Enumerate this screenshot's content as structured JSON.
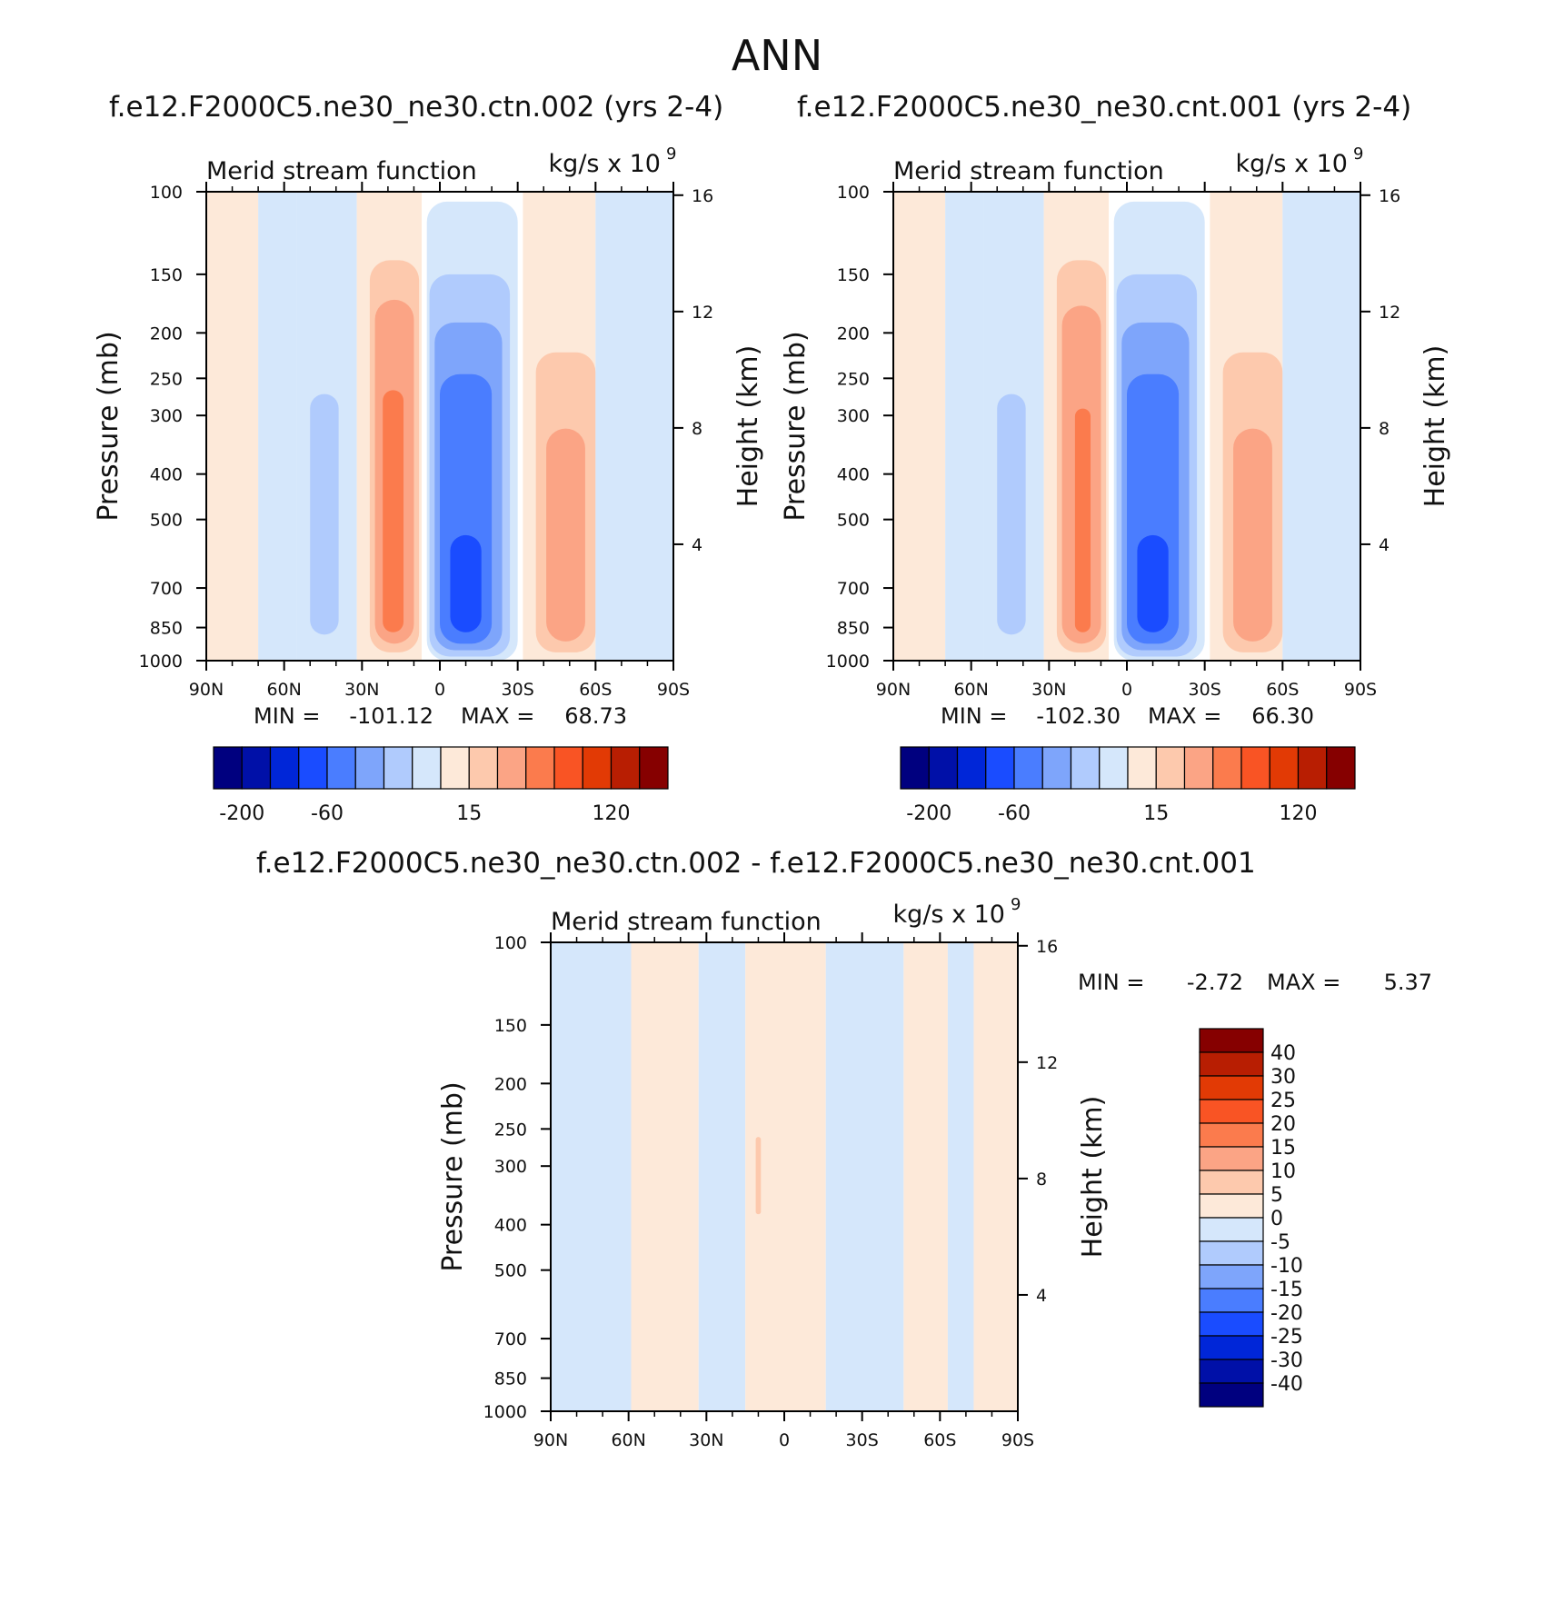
{
  "figure": {
    "title": "ANN",
    "panel_titles": [
      "f.e12.F2000C5.ne30_ne30.ctn.002 (yrs 2-4)",
      "f.e12.F2000C5.ne30_ne30.cnt.001 (yrs 2-4)",
      "f.e12.F2000C5.ne30_ne30.ctn.002 - f.e12.F2000C5.ne30_ne30.cnt.001"
    ]
  },
  "colors": {
    "main_scale": [
      "#00007f",
      "#0010a8",
      "#0026d8",
      "#1a4cff",
      "#4a7dff",
      "#7ea5fb",
      "#b0cbfd",
      "#d5e7fb",
      "#fde9d9",
      "#fdc9ad",
      "#fba485",
      "#fb7b4d",
      "#f95424",
      "#e23a05",
      "#b81e02",
      "#860000"
    ],
    "diff_scale": [
      "#00007f",
      "#0010a8",
      "#0026d8",
      "#1a4cff",
      "#4a7dff",
      "#7ea5fb",
      "#b0cbfd",
      "#d5e7fb",
      "#fde9d9",
      "#fdc9ad",
      "#fba485",
      "#fb7b4d",
      "#f95424",
      "#e23a05",
      "#b81e02",
      "#860000"
    ]
  },
  "chart_data": [
    {
      "type": "heatmap",
      "title": "f.e12.F2000C5.ne30_ne30.ctn.002 (yrs 2-4)",
      "left_string": "Merid stream function",
      "right_string": "kg/s x 10",
      "right_string_exp": "9",
      "xlabel": "",
      "ylabel": "Pressure (mb)",
      "y2label": "Height (km)",
      "x_tick_labels": [
        "90N",
        "60N",
        "30N",
        "0",
        "30S",
        "60S",
        "90S"
      ],
      "x_ticks": [
        90,
        60,
        30,
        0,
        -30,
        -60,
        -90
      ],
      "xlim": [
        90,
        -90
      ],
      "y_ticks": [
        100,
        150,
        200,
        250,
        300,
        400,
        500,
        700,
        850,
        1000
      ],
      "y_tick_labels": [
        "100",
        "150",
        "200",
        "250",
        "300",
        "400",
        "500",
        "700",
        "850",
        "1000"
      ],
      "ylim": [
        1000,
        100
      ],
      "y_scale": "log",
      "y2_ticks": [
        4,
        8,
        12,
        16
      ],
      "y2_tick_labels": [
        "4",
        "8",
        "12",
        "16"
      ],
      "min_label": "MIN =",
      "min_value": "-101.12",
      "max_label": "MAX =",
      "max_value": "68.73",
      "contour_levels": [
        -200,
        -150,
        -100,
        -60,
        -40,
        -30,
        -15,
        0,
        15,
        30,
        40,
        60,
        100,
        120,
        150
      ],
      "colorbar_labels": [
        "-200",
        "-60",
        "15",
        "120"
      ],
      "colorbar_orientation": "horizontal",
      "cells": [
        {
          "lat_from": 90,
          "lat_to": 70,
          "p_from": 100,
          "p_to": 1000,
          "value": 7
        },
        {
          "lat_from": 70,
          "lat_to": 55,
          "p_from": 100,
          "p_to": 1000,
          "value": -7
        },
        {
          "lat_from": 55,
          "lat_to": 32,
          "p_from": 100,
          "p_to": 1000,
          "value": -7
        },
        {
          "lat_from": 50,
          "lat_to": 39,
          "p_from": 270,
          "p_to": 880,
          "value": -18
        },
        {
          "lat_from": 32,
          "lat_to": 7,
          "p_from": 100,
          "p_to": 1000,
          "value": 7
        },
        {
          "lat_from": 27,
          "lat_to": 8,
          "p_from": 140,
          "p_to": 960,
          "value": 18
        },
        {
          "lat_from": 25,
          "lat_to": 10,
          "p_from": 170,
          "p_to": 920,
          "value": 35
        },
        {
          "lat_from": 22,
          "lat_to": 14,
          "p_from": 265,
          "p_to": 870,
          "value": 45
        },
        {
          "lat_from": 5,
          "lat_to": -30,
          "p_from": 105,
          "p_to": 1000,
          "value": -7
        },
        {
          "lat_from": 4,
          "lat_to": -27,
          "p_from": 150,
          "p_to": 980,
          "value": -18
        },
        {
          "lat_from": 2,
          "lat_to": -24,
          "p_from": 190,
          "p_to": 950,
          "value": -35
        },
        {
          "lat_from": 0,
          "lat_to": -20,
          "p_from": 245,
          "p_to": 920,
          "value": -50
        },
        {
          "lat_from": -4,
          "lat_to": -16,
          "p_from": 540,
          "p_to": 870,
          "value": -80
        },
        {
          "lat_from": -32,
          "lat_to": -60,
          "p_from": 100,
          "p_to": 1000,
          "value": 7
        },
        {
          "lat_from": -37,
          "lat_to": -60,
          "p_from": 220,
          "p_to": 960,
          "value": 18
        },
        {
          "lat_from": -41,
          "lat_to": -56,
          "p_from": 320,
          "p_to": 910,
          "value": 35
        },
        {
          "lat_from": -60,
          "lat_to": -90,
          "p_from": 100,
          "p_to": 1000,
          "value": -7
        }
      ]
    },
    {
      "type": "heatmap",
      "title": "f.e12.F2000C5.ne30_ne30.cnt.001 (yrs 2-4)",
      "left_string": "Merid stream function",
      "right_string": "kg/s x 10",
      "right_string_exp": "9",
      "xlabel": "",
      "ylabel": "Pressure (mb)",
      "y2label": "Height (km)",
      "x_tick_labels": [
        "90N",
        "60N",
        "30N",
        "0",
        "30S",
        "60S",
        "90S"
      ],
      "x_ticks": [
        90,
        60,
        30,
        0,
        -30,
        -60,
        -90
      ],
      "xlim": [
        90,
        -90
      ],
      "y_ticks": [
        100,
        150,
        200,
        250,
        300,
        400,
        500,
        700,
        850,
        1000
      ],
      "y_tick_labels": [
        "100",
        "150",
        "200",
        "250",
        "300",
        "400",
        "500",
        "700",
        "850",
        "1000"
      ],
      "ylim": [
        1000,
        100
      ],
      "y_scale": "log",
      "y2_ticks": [
        4,
        8,
        12,
        16
      ],
      "y2_tick_labels": [
        "4",
        "8",
        "12",
        "16"
      ],
      "min_label": "MIN =",
      "min_value": "-102.30",
      "max_label": "MAX =",
      "max_value": "66.30",
      "contour_levels": [
        -200,
        -150,
        -100,
        -60,
        -40,
        -30,
        -15,
        0,
        15,
        30,
        40,
        60,
        100,
        120,
        150
      ],
      "colorbar_labels": [
        "-200",
        "-60",
        "15",
        "120"
      ],
      "colorbar_orientation": "horizontal",
      "cells": [
        {
          "lat_from": 90,
          "lat_to": 70,
          "p_from": 100,
          "p_to": 1000,
          "value": 7
        },
        {
          "lat_from": 70,
          "lat_to": 55,
          "p_from": 100,
          "p_to": 1000,
          "value": -7
        },
        {
          "lat_from": 55,
          "lat_to": 32,
          "p_from": 100,
          "p_to": 1000,
          "value": -7
        },
        {
          "lat_from": 50,
          "lat_to": 39,
          "p_from": 270,
          "p_to": 880,
          "value": -18
        },
        {
          "lat_from": 32,
          "lat_to": 7,
          "p_from": 100,
          "p_to": 1000,
          "value": 7
        },
        {
          "lat_from": 27,
          "lat_to": 8,
          "p_from": 140,
          "p_to": 960,
          "value": 18
        },
        {
          "lat_from": 25,
          "lat_to": 10,
          "p_from": 175,
          "p_to": 920,
          "value": 35
        },
        {
          "lat_from": 20,
          "lat_to": 14,
          "p_from": 290,
          "p_to": 870,
          "value": 45
        },
        {
          "lat_from": 5,
          "lat_to": -30,
          "p_from": 105,
          "p_to": 1000,
          "value": -7
        },
        {
          "lat_from": 4,
          "lat_to": -27,
          "p_from": 150,
          "p_to": 980,
          "value": -18
        },
        {
          "lat_from": 2,
          "lat_to": -24,
          "p_from": 190,
          "p_to": 950,
          "value": -35
        },
        {
          "lat_from": 0,
          "lat_to": -20,
          "p_from": 245,
          "p_to": 920,
          "value": -50
        },
        {
          "lat_from": -4,
          "lat_to": -16,
          "p_from": 540,
          "p_to": 870,
          "value": -80
        },
        {
          "lat_from": -32,
          "lat_to": -60,
          "p_from": 100,
          "p_to": 1000,
          "value": 7
        },
        {
          "lat_from": -37,
          "lat_to": -60,
          "p_from": 220,
          "p_to": 960,
          "value": 18
        },
        {
          "lat_from": -41,
          "lat_to": -56,
          "p_from": 320,
          "p_to": 910,
          "value": 35
        },
        {
          "lat_from": -60,
          "lat_to": -90,
          "p_from": 100,
          "p_to": 1000,
          "value": -7
        }
      ]
    },
    {
      "type": "heatmap",
      "title": "f.e12.F2000C5.ne30_ne30.ctn.002 - f.e12.F2000C5.ne30_ne30.cnt.001",
      "left_string": "Merid stream function",
      "right_string": "kg/s x 10",
      "right_string_exp": "9",
      "xlabel": "",
      "ylabel": "Pressure (mb)",
      "y2label": "Height (km)",
      "x_tick_labels": [
        "90N",
        "60N",
        "30N",
        "0",
        "30S",
        "60S",
        "90S"
      ],
      "x_ticks": [
        90,
        60,
        30,
        0,
        -30,
        -60,
        -90
      ],
      "xlim": [
        90,
        -90
      ],
      "y_ticks": [
        100,
        150,
        200,
        250,
        300,
        400,
        500,
        700,
        850,
        1000
      ],
      "y_tick_labels": [
        "100",
        "150",
        "200",
        "250",
        "300",
        "400",
        "500",
        "700",
        "850",
        "1000"
      ],
      "ylim": [
        1000,
        100
      ],
      "y_scale": "log",
      "y2_ticks": [
        4,
        8,
        12,
        16
      ],
      "y2_tick_labels": [
        "4",
        "8",
        "12",
        "16"
      ],
      "min_label": "MIN =",
      "min_value": "-2.72",
      "max_label": "MAX =",
      "max_value": "5.37",
      "contour_levels": [
        -40,
        -30,
        -25,
        -20,
        -15,
        -10,
        -5,
        0,
        5,
        10,
        15,
        20,
        25,
        30,
        40
      ],
      "colorbar_labels": [
        "40",
        "30",
        "25",
        "20",
        "15",
        "10",
        "5",
        "0",
        "-5",
        "-10",
        "-15",
        "-20",
        "-25",
        "-30",
        "-40"
      ],
      "colorbar_orientation": "vertical",
      "cells": [
        {
          "lat_from": 90,
          "lat_to": 59,
          "p_from": 100,
          "p_to": 1000,
          "value": -2
        },
        {
          "lat_from": 59,
          "lat_to": 33,
          "p_from": 100,
          "p_to": 1000,
          "value": 2
        },
        {
          "lat_from": 33,
          "lat_to": 15,
          "p_from": 100,
          "p_to": 1000,
          "value": -2
        },
        {
          "lat_from": 15,
          "lat_to": -16,
          "p_from": 100,
          "p_to": 1000,
          "value": 2
        },
        {
          "lat_from": 11,
          "lat_to": 9,
          "p_from": 260,
          "p_to": 380,
          "value": 7
        },
        {
          "lat_from": -16,
          "lat_to": -46,
          "p_from": 100,
          "p_to": 1000,
          "value": -2
        },
        {
          "lat_from": -46,
          "lat_to": -63,
          "p_from": 100,
          "p_to": 1000,
          "value": 2
        },
        {
          "lat_from": -63,
          "lat_to": -73,
          "p_from": 100,
          "p_to": 1000,
          "value": -2
        },
        {
          "lat_from": -73,
          "lat_to": -90,
          "p_from": 100,
          "p_to": 1000,
          "value": 2
        }
      ]
    }
  ]
}
